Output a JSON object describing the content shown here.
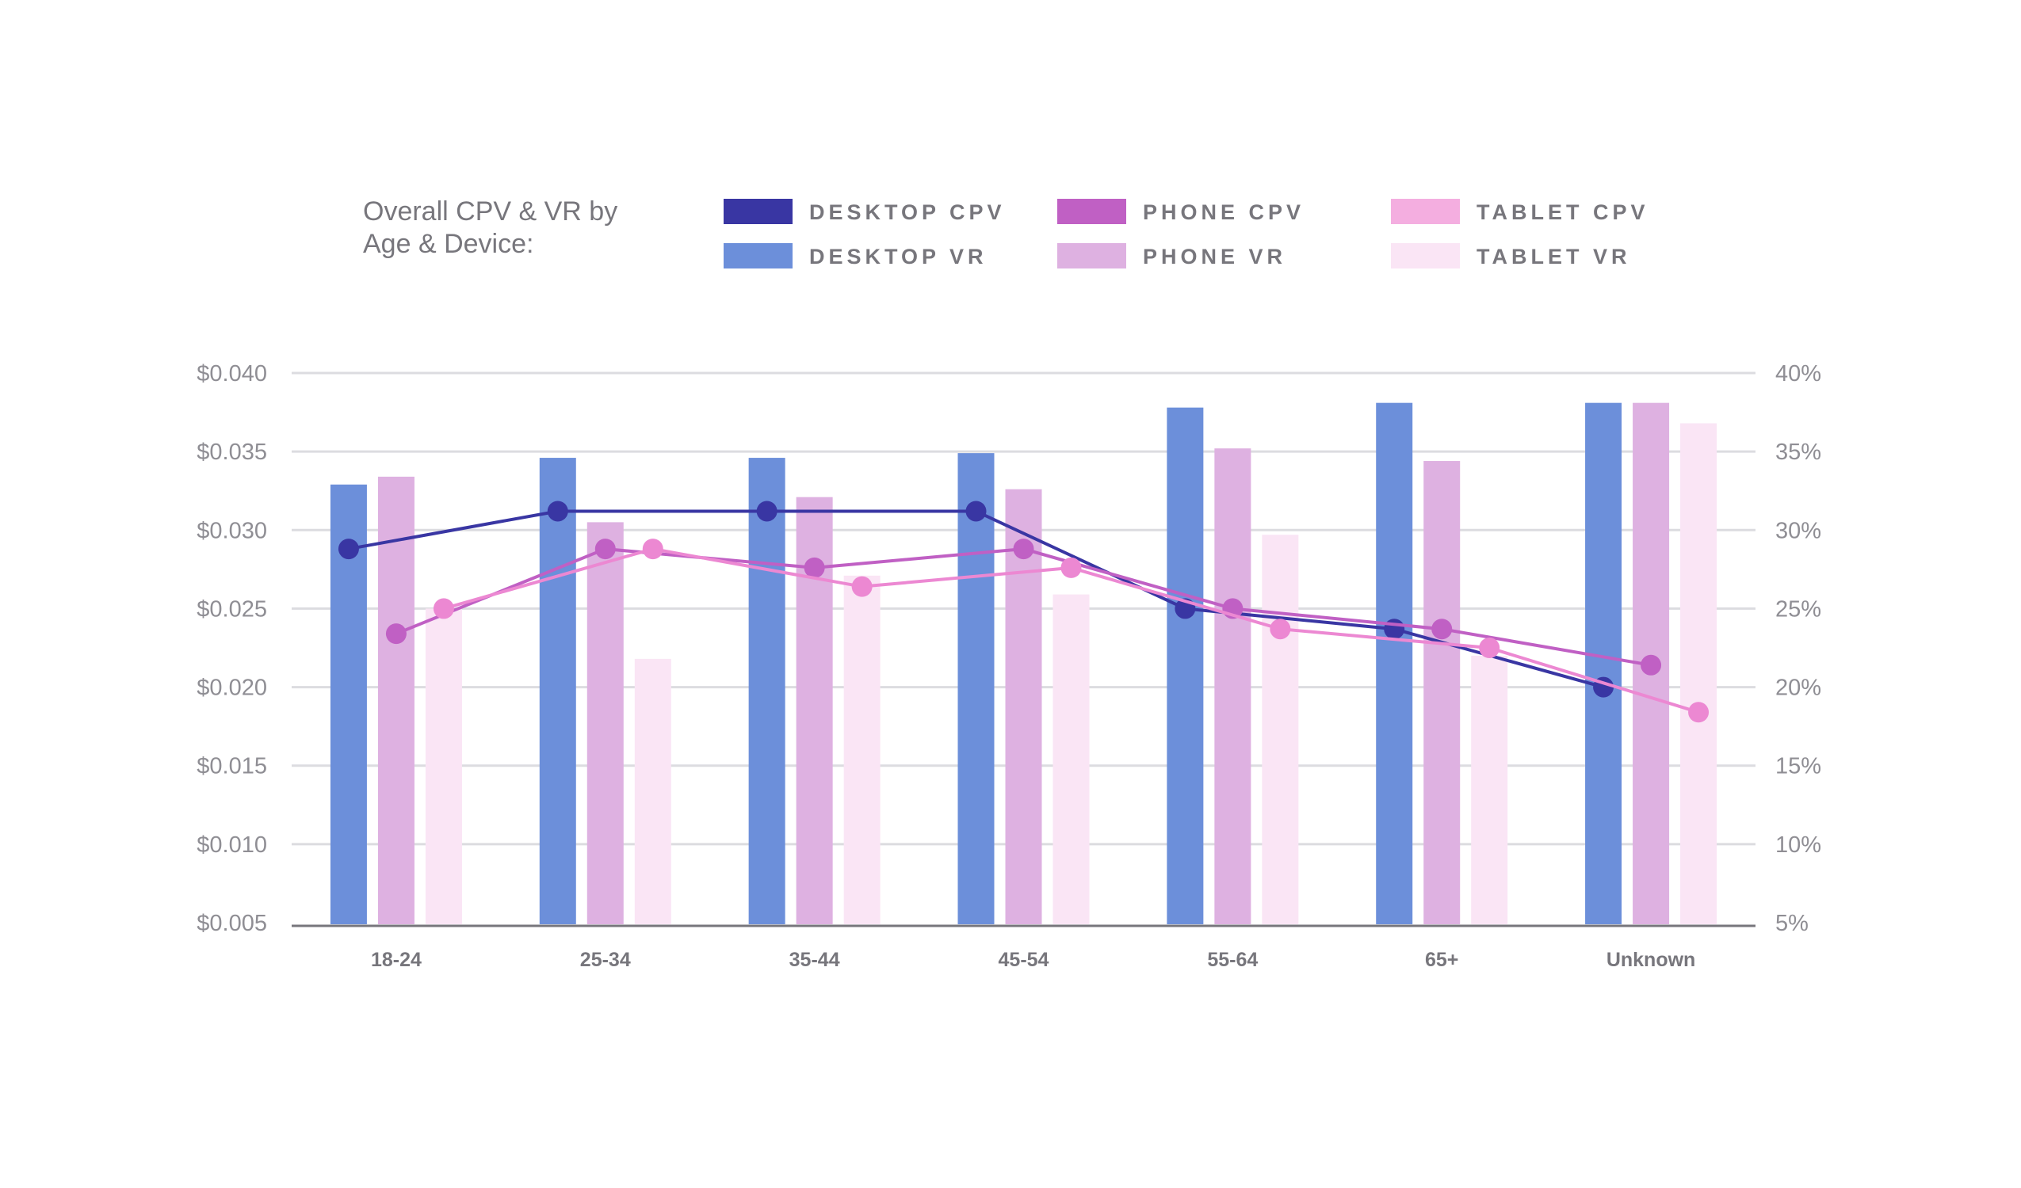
{
  "chart_data": {
    "type": "bar",
    "title": [
      "Overall CPV & VR by",
      "Age & Device:"
    ],
    "categories": [
      "18-24",
      "25-34",
      "35-44",
      "45-54",
      "55-64",
      "65+",
      "Unknown"
    ],
    "left_axis": {
      "ticks": [
        "$0.040",
        "$0.035",
        "$0.030",
        "$0.025",
        "$0.020",
        "$0.015",
        "$0.010",
        "$0.005"
      ],
      "range": [
        0.005,
        0.04
      ]
    },
    "right_axis": {
      "ticks": [
        "40%",
        "35%",
        "30%",
        "25%",
        "20%",
        "15%",
        "10%",
        "5%"
      ],
      "range": [
        5,
        40
      ]
    },
    "bar_series": [
      {
        "name": "DESKTOP VR",
        "color": "#6c8fda",
        "values": [
          32.9,
          34.6,
          34.6,
          34.9,
          37.8,
          38.1,
          38.1
        ]
      },
      {
        "name": "PHONE VR",
        "color": "#deb1e1",
        "values": [
          33.4,
          30.5,
          32.1,
          32.6,
          35.2,
          34.4,
          38.1
        ]
      },
      {
        "name": "TABLET VR",
        "color": "#fae5f5",
        "values": [
          25.0,
          21.8,
          27.1,
          25.9,
          29.7,
          22.0,
          36.8
        ]
      }
    ],
    "line_series": [
      {
        "name": "DESKTOP CPV",
        "color": "#3936a3",
        "values": [
          0.0288,
          0.0312,
          0.0312,
          0.0312,
          0.025,
          0.0237,
          0.02
        ]
      },
      {
        "name": "PHONE CPV",
        "color": "#c060c4",
        "values": [
          0.0234,
          0.0288,
          0.0276,
          0.0288,
          0.025,
          0.0237,
          0.0214
        ]
      },
      {
        "name": "TABLET CPV",
        "color": "#ec88d2",
        "values": [
          0.025,
          0.0288,
          0.0264,
          0.0276,
          0.0237,
          0.0225,
          0.0184
        ]
      }
    ],
    "legend": {
      "items": [
        {
          "label": "DESKTOP CPV",
          "color": "#3936a3"
        },
        {
          "label": "DESKTOP VR",
          "color": "#6c8fda"
        },
        {
          "label": "PHONE CPV",
          "color": "#c060c4"
        },
        {
          "label": "PHONE VR",
          "color": "#deb1e1"
        },
        {
          "label": "TABLET CPV",
          "color": "#f4aee0"
        },
        {
          "label": "TABLET VR",
          "color": "#fae5f5"
        }
      ]
    },
    "grid": true
  }
}
